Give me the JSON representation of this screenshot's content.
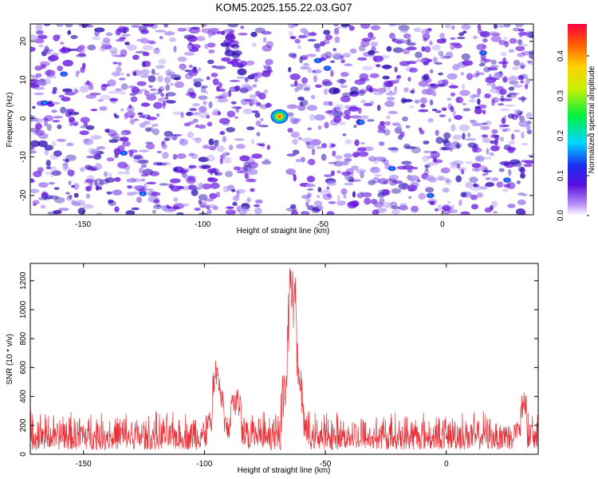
{
  "figure_title": "KOM5.2025.155.22.03.G07",
  "chart_data": [
    {
      "type": "heatmap",
      "title": "",
      "xlabel": "Height of straight line (km)",
      "ylabel": "Frequency (Hz)",
      "xlim": [
        -172,
        38
      ],
      "ylim": [
        -25,
        24.5
      ],
      "xticks": [
        -150,
        -100,
        -50,
        0
      ],
      "yticks": [
        -20,
        -10,
        0,
        10,
        20
      ],
      "colorbar": {
        "label": "Normalized spectral amplitude",
        "range": [
          0,
          0.48
        ],
        "ticks": [
          0.0,
          0.1,
          0.2,
          0.3,
          0.4
        ]
      },
      "colors": {
        "background": "#ffffff",
        "low": "#a98ff2",
        "mid": "#6a1be0",
        "high": "#2e10b0"
      },
      "peak": {
        "x": -68,
        "y": 0.5,
        "value": 0.46
      },
      "hotspots": [
        {
          "x": -158,
          "y": 11.5,
          "value": 0.12
        },
        {
          "x": -52,
          "y": 15,
          "value": 0.1
        },
        {
          "x": -48,
          "y": 13,
          "value": 0.08
        },
        {
          "x": -34,
          "y": -1,
          "value": 0.09
        },
        {
          "x": -21,
          "y": -13,
          "value": 0.08
        },
        {
          "x": -5,
          "y": -20,
          "value": 0.1
        },
        {
          "x": 17,
          "y": 17,
          "value": 0.09
        },
        {
          "x": 27,
          "y": -16,
          "value": 0.08
        },
        {
          "x": -125,
          "y": -19.5,
          "value": 0.07
        },
        {
          "x": -133,
          "y": -9,
          "value": 0.08
        },
        {
          "x": -166,
          "y": 4,
          "value": 0.07
        }
      ],
      "blank_band": {
        "x_from": -72,
        "x_to": -64
      }
    },
    {
      "type": "line",
      "title": "",
      "xlabel": "Height of straight line (km)",
      "ylabel": "SNR (10 * v/v)",
      "xlim": [
        -172,
        38
      ],
      "ylim": [
        0,
        1320
      ],
      "xticks": [
        -150,
        -100,
        -50,
        0
      ],
      "yticks": [
        0,
        200,
        400,
        600,
        800,
        1000,
        1200
      ],
      "line_color": "#e8333a",
      "baseline_range": [
        30,
        320
      ],
      "features": [
        {
          "x": -95.5,
          "y": 660
        },
        {
          "x": -94.5,
          "y": 610
        },
        {
          "x": -93,
          "y": 470
        },
        {
          "x": -88,
          "y": 470
        },
        {
          "x": -86,
          "y": 450
        },
        {
          "x": -64.5,
          "y": 1150
        },
        {
          "x": -63.5,
          "y": 1310
        },
        {
          "x": -63,
          "y": 1250
        },
        {
          "x": -62.5,
          "y": 980
        },
        {
          "x": -61.5,
          "y": 620
        },
        {
          "x": 32,
          "y": 430
        }
      ]
    }
  ]
}
